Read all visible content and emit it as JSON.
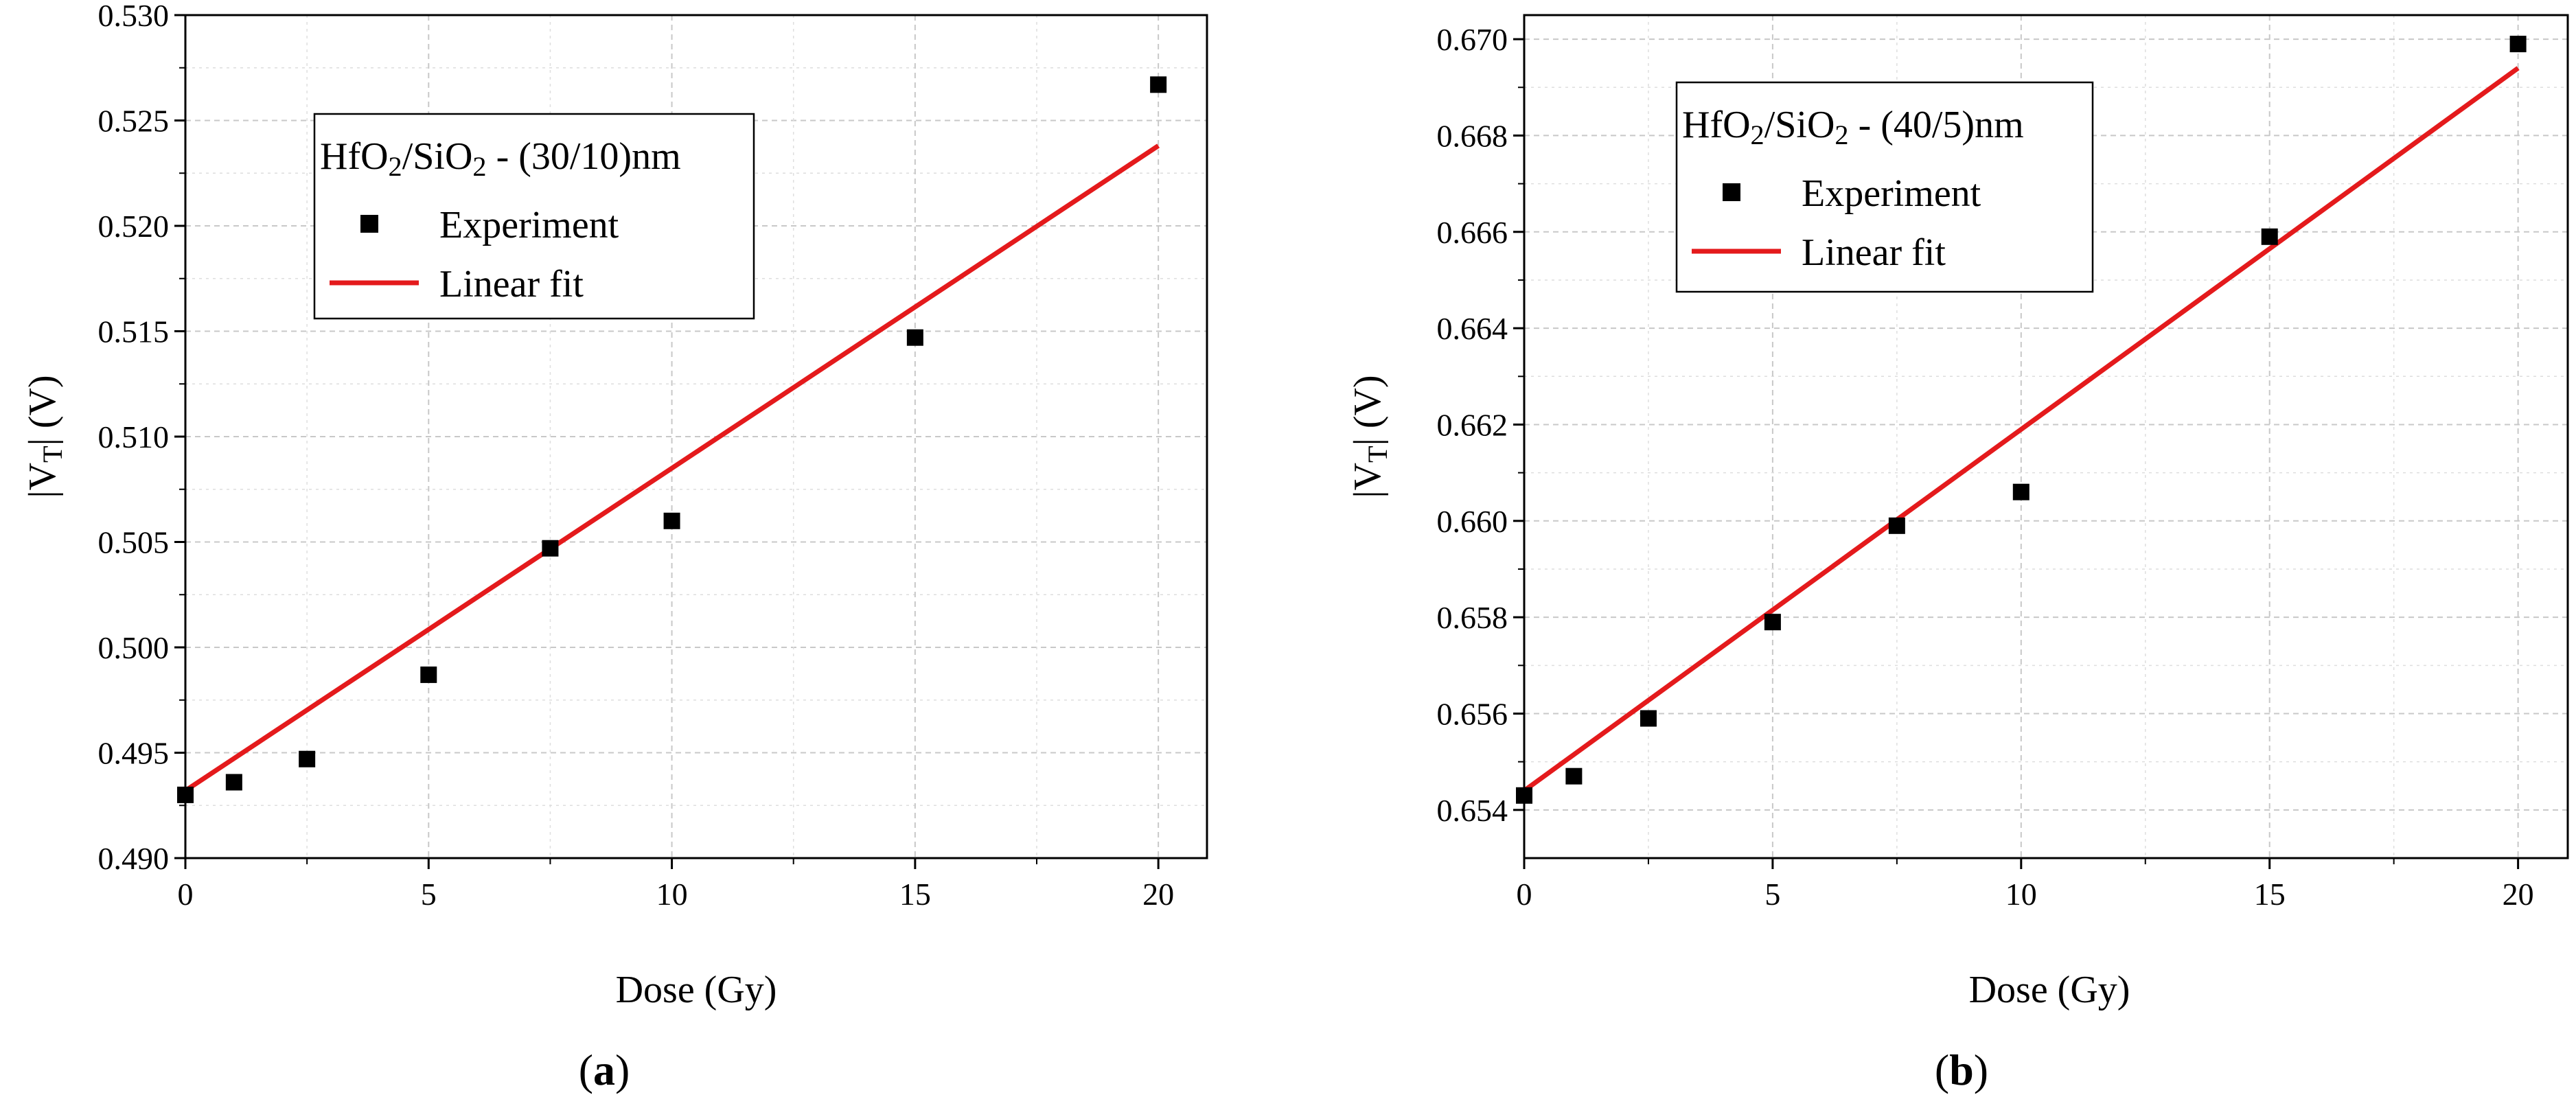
{
  "chart_data": [
    {
      "type": "scatter",
      "panel_label": "a",
      "legend": {
        "title": "HfO2/SiO2 - (30/10)nm",
        "placement": "top-left",
        "entries": [
          "Experiment",
          "Linear fit"
        ]
      },
      "xlabel": "Dose (Gy)",
      "ylabel": "|VT| (V)",
      "xlim": [
        0,
        21
      ],
      "ylim": [
        0.49,
        0.53
      ],
      "xticks": [
        0,
        5,
        10,
        15,
        20
      ],
      "yticks": [
        0.49,
        0.495,
        0.5,
        0.505,
        0.51,
        0.515,
        0.52,
        0.525,
        0.53
      ],
      "ytick_labels": [
        "0.490",
        "0.495",
        "0.500",
        "0.505",
        "0.510",
        "0.515",
        "0.520",
        "0.525",
        "0.530"
      ],
      "grid": true,
      "series": [
        {
          "name": "Experiment",
          "kind": "scatter",
          "x": [
            0,
            1,
            2.5,
            5,
            7.5,
            10,
            15,
            20
          ],
          "y": [
            0.493,
            0.4936,
            0.4947,
            0.4987,
            0.5047,
            0.506,
            0.5147,
            0.5267
          ]
        },
        {
          "name": "Linear fit",
          "kind": "line",
          "x": [
            0,
            20
          ],
          "y": [
            0.4932,
            0.5238
          ]
        }
      ],
      "colors": {
        "fit": "#e41a1c",
        "marker": "#000000",
        "grid": "#c8c8c8"
      }
    },
    {
      "type": "scatter",
      "panel_label": "b",
      "legend": {
        "title": "HfO2/SiO2 - (40/5)nm",
        "placement": "top-left",
        "entries": [
          "Experiment",
          "Linear fit"
        ]
      },
      "xlabel": "Dose (Gy)",
      "ylabel": "|VT| (V)",
      "xlim": [
        0,
        21
      ],
      "ylim": [
        0.653,
        0.6705
      ],
      "xticks": [
        0,
        5,
        10,
        15,
        20
      ],
      "yticks": [
        0.654,
        0.656,
        0.658,
        0.66,
        0.662,
        0.664,
        0.666,
        0.668,
        0.67
      ],
      "ytick_labels": [
        "0.654",
        "0.656",
        "0.658",
        "0.660",
        "0.662",
        "0.664",
        "0.666",
        "0.668",
        "0.670"
      ],
      "grid": true,
      "series": [
        {
          "name": "Experiment",
          "kind": "scatter",
          "x": [
            0,
            1,
            2.5,
            5,
            7.5,
            10,
            15,
            20
          ],
          "y": [
            0.6543,
            0.6547,
            0.6559,
            0.6579,
            0.6599,
            0.6606,
            0.6659,
            0.6699
          ]
        },
        {
          "name": "Linear fit",
          "kind": "line",
          "x": [
            0,
            20
          ],
          "y": [
            0.6544,
            0.6694
          ]
        }
      ],
      "colors": {
        "fit": "#e41a1c",
        "marker": "#000000",
        "grid": "#c8c8c8"
      }
    }
  ]
}
